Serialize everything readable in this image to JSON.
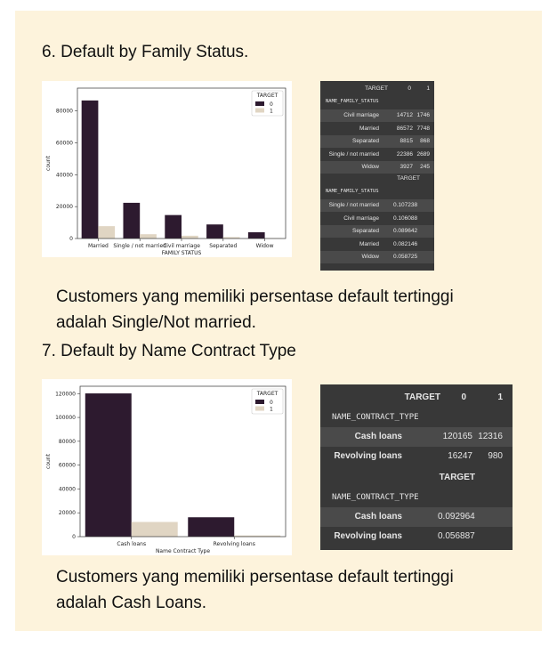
{
  "section6": {
    "heading": "6. Default by Family Status.",
    "conclusion_line1": "Customers yang memiliki persentase default tertinggi",
    "conclusion_line2": "adalah Single/Not married."
  },
  "section7": {
    "heading": "7. Default by Name Contract Type",
    "conclusion_line1": "Customers yang memiliki persentase default tertinggi",
    "conclusion_line2": "adalah Cash Loans."
  },
  "colors": {
    "target0": "#2d1a2f",
    "target1": "#e0d5c3",
    "table_bg": "#383838",
    "table_stripe": "#4a4a4a"
  },
  "table1": {
    "counts": {
      "top_header": "TARGET",
      "col0": "0",
      "col1": "1",
      "index_name": "NAME_FAMILY_STATUS",
      "rows": [
        {
          "label": "Civil marriage",
          "v0": "14712",
          "v1": "1746"
        },
        {
          "label": "Married",
          "v0": "86572",
          "v1": "7748"
        },
        {
          "label": "Separated",
          "v0": "8815",
          "v1": "868"
        },
        {
          "label": "Single / not married",
          "v0": "22386",
          "v1": "2689"
        },
        {
          "label": "Widow",
          "v0": "3927",
          "v1": "245"
        }
      ]
    },
    "ratios": {
      "header": "TARGET",
      "index_name": "NAME_FAMILY_STATUS",
      "rows": [
        {
          "label": "Single / not married",
          "v": "0.107238"
        },
        {
          "label": "Civil marriage",
          "v": "0.106088"
        },
        {
          "label": "Separated",
          "v": "0.089642"
        },
        {
          "label": "Married",
          "v": "0.082146"
        },
        {
          "label": "Widow",
          "v": "0.058725"
        }
      ]
    }
  },
  "table2": {
    "counts": {
      "top_header": "TARGET",
      "col0": "0",
      "col1": "1",
      "index_name": "NAME_CONTRACT_TYPE",
      "rows": [
        {
          "label": "Cash loans",
          "v0": "120165",
          "v1": "12316"
        },
        {
          "label": "Revolving loans",
          "v0": "16247",
          "v1": "980"
        }
      ]
    },
    "ratios": {
      "header": "TARGET",
      "index_name": "NAME_CONTRACT_TYPE",
      "rows": [
        {
          "label": "Cash loans",
          "v": "0.092964"
        },
        {
          "label": "Revolving loans",
          "v": "0.056887"
        }
      ]
    }
  },
  "chart_data": [
    {
      "type": "bar",
      "xlabel": "FAMILY STATUS",
      "ylabel": "count",
      "categories": [
        "Married",
        "Single / not married",
        "Civil marriage",
        "Separated",
        "Widow"
      ],
      "ylim": [
        0,
        94320
      ],
      "yticks": [
        0,
        20000,
        40000,
        60000,
        80000
      ],
      "legend_title": "TARGET",
      "legend_position": "top-right",
      "series": [
        {
          "name": "0",
          "values": [
            86572,
            22386,
            14712,
            8815,
            3927
          ]
        },
        {
          "name": "1",
          "values": [
            7748,
            2689,
            1746,
            868,
            245
          ]
        }
      ]
    },
    {
      "type": "bar",
      "xlabel": "Name Contract Type",
      "ylabel": "count",
      "categories": [
        "Cash loans",
        "Revolving loans"
      ],
      "ylim": [
        0,
        126173
      ],
      "yticks": [
        0,
        20000,
        40000,
        60000,
        80000,
        100000,
        120000
      ],
      "legend_title": "TARGET",
      "legend_position": "top-right",
      "series": [
        {
          "name": "0",
          "values": [
            120165,
            16247
          ]
        },
        {
          "name": "1",
          "values": [
            12316,
            980
          ]
        }
      ]
    }
  ]
}
